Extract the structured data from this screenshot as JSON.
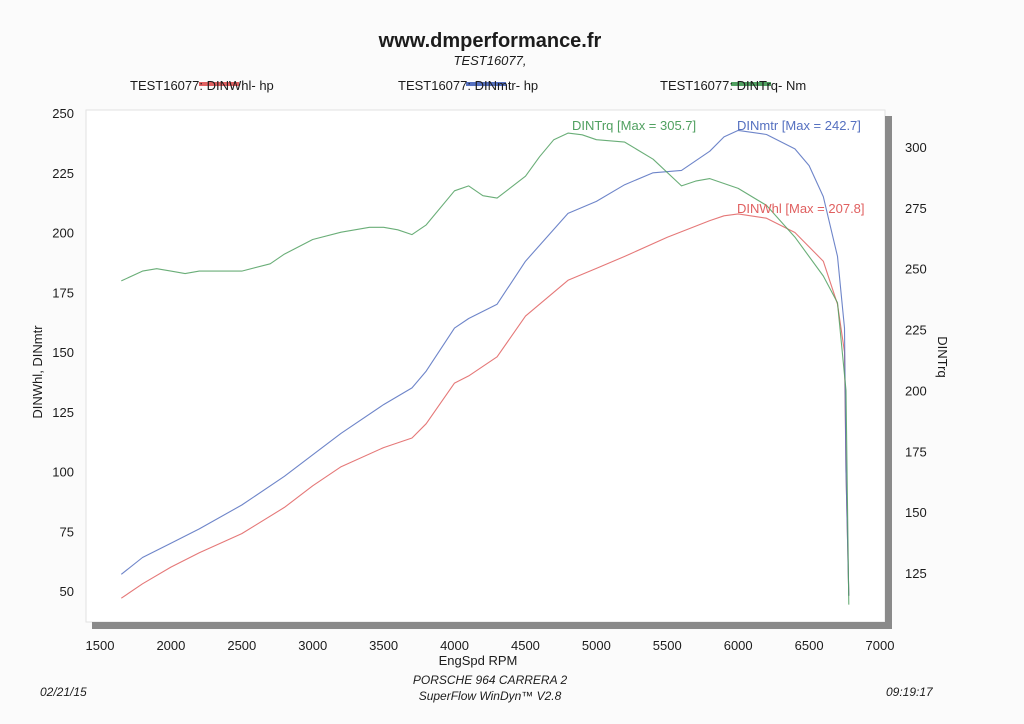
{
  "header": {
    "site": "www.dmperformance.fr",
    "test_id": "TEST16077,"
  },
  "legend": [
    {
      "label": "TEST16077: DINWhl-  hp",
      "color": "#e06060"
    },
    {
      "label": "TEST16077: DINmtr-  hp",
      "color": "#5570c0"
    },
    {
      "label": "TEST16077: DINTrq-  Nm",
      "color": "#50a060"
    }
  ],
  "footer": {
    "car": "PORSCHE 964 CARRERA 2",
    "software": "SuperFlow WinDyn™ V2.8",
    "date": "02/21/15",
    "time": "09:19:17"
  },
  "chart_data": {
    "type": "line",
    "xlabel": "EngSpd  RPM",
    "ylabel_left": "DINWhl, DINmtr",
    "ylabel_right": "DINTrq",
    "xlim": [
      1500,
      7000
    ],
    "ylim_left": [
      40,
      250
    ],
    "ylim_right": [
      110,
      310
    ],
    "x_ticks": [
      "1500",
      "2000",
      "2500",
      "3000",
      "3500",
      "4000",
      "4500",
      "5000",
      "5500",
      "6000",
      "6500",
      "7000"
    ],
    "y_ticks_left": [
      "50",
      "75",
      "100",
      "125",
      "150",
      "175",
      "200",
      "225",
      "250"
    ],
    "y_ticks_right": [
      "125",
      "150",
      "175",
      "200",
      "225",
      "250",
      "275",
      "300"
    ],
    "annotations": [
      {
        "series": "DINTrq",
        "text": "DINTrq [Max = 305.7]",
        "color": "#50a060"
      },
      {
        "series": "DINmtr",
        "text": "DINmtr [Max = 242.7]",
        "color": "#5570c0"
      },
      {
        "series": "DINWhl",
        "text": "DINWhl [Max = 207.8]",
        "color": "#e06060"
      }
    ],
    "series": [
      {
        "name": "DINWhl",
        "color": "#e06060",
        "axis": "left",
        "x": [
          1650,
          1800,
          2000,
          2200,
          2500,
          2800,
          3000,
          3200,
          3500,
          3700,
          3800,
          4000,
          4100,
          4300,
          4500,
          4800,
          5000,
          5200,
          5500,
          5800,
          5900,
          6000,
          6200,
          6400,
          6600,
          6700,
          6750,
          6760,
          6780
        ],
        "y": [
          47,
          53,
          60,
          66,
          74,
          85,
          94,
          102,
          110,
          114,
          120,
          137,
          140,
          148,
          165,
          180,
          185,
          190,
          198,
          205,
          207,
          207.8,
          206,
          200,
          188,
          170,
          150,
          100,
          48
        ]
      },
      {
        "name": "DINmtr",
        "color": "#5570c0",
        "axis": "left",
        "x": [
          1650,
          1800,
          2000,
          2200,
          2500,
          2800,
          3000,
          3200,
          3500,
          3700,
          3800,
          4000,
          4100,
          4300,
          4500,
          4800,
          5000,
          5200,
          5400,
          5600,
          5800,
          5900,
          6000,
          6200,
          6400,
          6500,
          6600,
          6700,
          6750,
          6760,
          6780
        ],
        "y": [
          57,
          64,
          70,
          76,
          86,
          98,
          107,
          116,
          128,
          135,
          142,
          160,
          164,
          170,
          188,
          208,
          213,
          220,
          225,
          226,
          234,
          240,
          242.7,
          241,
          235,
          228,
          215,
          190,
          160,
          100,
          48
        ]
      },
      {
        "name": "DINTrq",
        "color": "#50a060",
        "axis": "right",
        "x": [
          1650,
          1800,
          1900,
          2000,
          2100,
          2200,
          2400,
          2500,
          2700,
          2800,
          3000,
          3200,
          3400,
          3500,
          3600,
          3700,
          3800,
          4000,
          4100,
          4200,
          4300,
          4500,
          4600,
          4700,
          4800,
          4900,
          5000,
          5200,
          5400,
          5600,
          5700,
          5800,
          6000,
          6200,
          6400,
          6600,
          6700,
          6760,
          6780
        ],
        "y": [
          245,
          249,
          250,
          249,
          248,
          249,
          249,
          249,
          252,
          256,
          262,
          265,
          267,
          267,
          266,
          264,
          268,
          282,
          284,
          280,
          279,
          288,
          296,
          303,
          305.7,
          305,
          303,
          302,
          295,
          284,
          286,
          287,
          283,
          276,
          263,
          247,
          236,
          200,
          112
        ]
      }
    ]
  }
}
